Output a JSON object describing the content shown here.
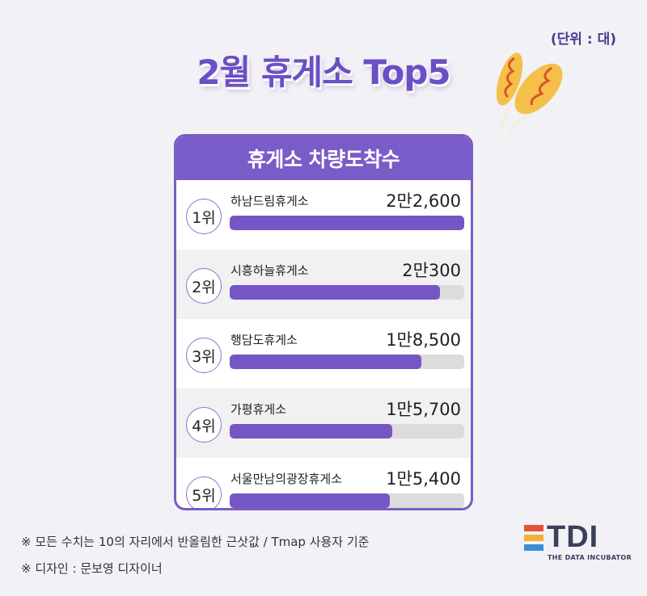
{
  "unit_label": "(단위 : 대)",
  "title": "2월 휴게소  Top5",
  "card_title": "휴게소 차량도착수",
  "chart_data": {
    "type": "bar",
    "title": "2월 휴게소  Top5",
    "subtitle": "휴게소 차량도착수",
    "unit": "(단위 : 대)",
    "categories": [
      "하남드림휴게소",
      "시흥하늘휴게소",
      "행담도휴게소",
      "가평휴게소",
      "서울만남의광장휴게소"
    ],
    "values": [
      22600,
      20300,
      18500,
      15700,
      15400
    ],
    "ranks": [
      "1위",
      "2위",
      "3위",
      "4위",
      "5위"
    ],
    "value_labels": [
      "2만2,600",
      "2만300",
      "1만8,500",
      "1만5,700",
      "1만5,400"
    ],
    "xlim": [
      0,
      22600
    ],
    "colors": {
      "bar": "#7556c4",
      "track": "#dcdcdc",
      "accent": "#6b4fc4"
    }
  },
  "notes": [
    "※ 모든 수치는 10의 자리에서 반올림한 근삿값 / Tmap 사용자 기준",
    "※ 디자인 : 문보영 디자이너"
  ],
  "logo": {
    "text": "TDI",
    "sub": "THE DATA INCUBATOR"
  },
  "icons": [
    "corn-dog-icon",
    "tdi-logo-icon"
  ]
}
